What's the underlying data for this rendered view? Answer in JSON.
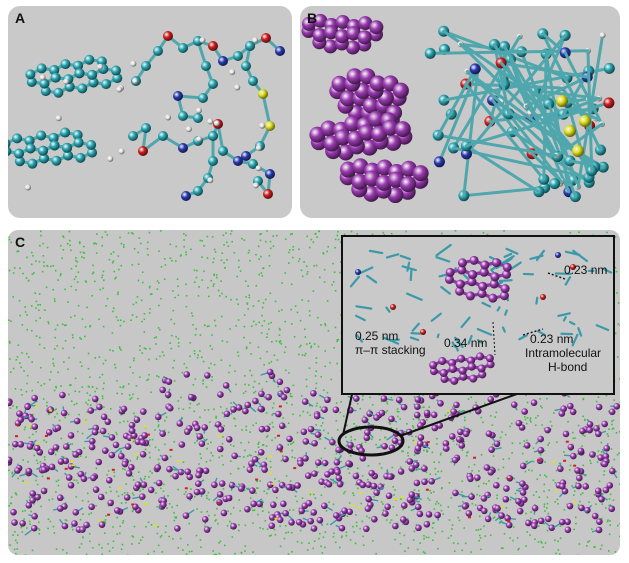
{
  "panels": {
    "a": {
      "label": "A"
    },
    "b": {
      "label": "B"
    },
    "c": {
      "label": "C"
    }
  },
  "annotations": {
    "d1": "0.23 nm",
    "d2": "0.25 nm",
    "stacking": "π–π stacking",
    "d3": "0.34 nm",
    "d4": "0.23 nm",
    "hbond_1": "Intramolecular",
    "hbond_2": "H-bond"
  },
  "colors": {
    "panel_bg": "#c9c9c9",
    "carbon": "#2aa7b3",
    "hydrogen": "#e8e8e8",
    "oxygen": "#d11f1f",
    "nitrogen": "#2b3bb0",
    "sulfur": "#e0e01e",
    "pyrene": "#9a3bb0",
    "water": "#3fbf3f"
  }
}
